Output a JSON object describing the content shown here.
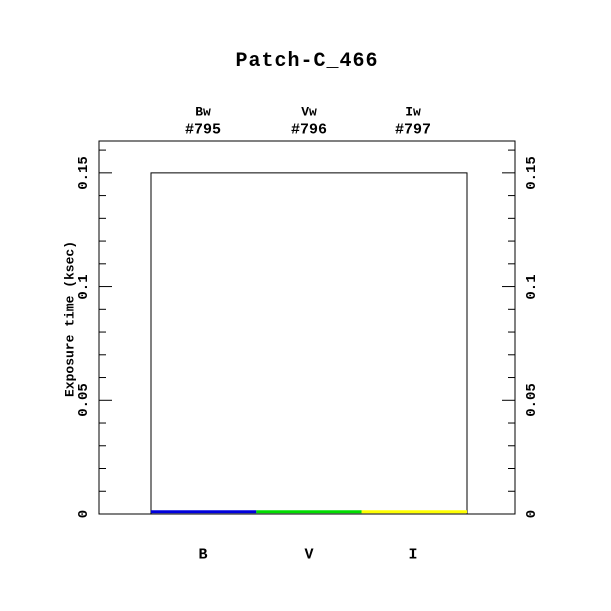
{
  "chart_data": {
    "type": "bar",
    "title": "Patch-C_466",
    "ylabel": "Exposure time (ksec)",
    "xlabel": "",
    "categories": [
      "B",
      "V",
      "I"
    ],
    "top_labels": [
      {
        "filter": "Bw",
        "id": "#795"
      },
      {
        "filter": "Vw",
        "id": "#796"
      },
      {
        "filter": "Iw",
        "id": "#797"
      }
    ],
    "series": [
      {
        "name": "outline-level",
        "style": "step-outline",
        "color": "#000000",
        "values": [
          0.15,
          0.15,
          0.15
        ]
      },
      {
        "name": "exposure-time",
        "style": "flat-segments",
        "values": [
          0.001,
          0.001,
          0.001
        ],
        "colors": [
          "#0000dd",
          "#00dd00",
          "#ffff00"
        ]
      }
    ],
    "ylim": [
      0,
      0.164
    ],
    "yticks_major": [
      0,
      0.05,
      0.1,
      0.15
    ],
    "ytick_labels": [
      "0",
      "0.05",
      "0.1",
      "0.15"
    ],
    "ytick_minor_step": 0.01,
    "grid": false,
    "legend": "none",
    "frame_color": "#000000",
    "background_color": "#ffffff"
  }
}
